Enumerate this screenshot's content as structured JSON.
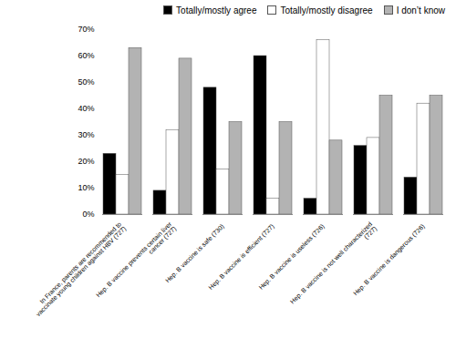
{
  "chart_data": {
    "type": "bar",
    "categories": [
      "In France, parents are recommended to\nvaccinate young children against HBV (727)",
      "Hep. B vaccine prevents certain liver\ncancer (727)",
      "Hep. B vaccine is safe (730)",
      "Hep. B vaccine is efficient (727)",
      "Hep. B vaccine is useless (726)",
      "Hep. B vaccine is not well characterized\n(727)",
      "Hep. B vaccine is dangerous (726)"
    ],
    "series": [
      {
        "name": "Totally/mostly agree",
        "color": "#000000",
        "values": [
          23,
          9,
          48,
          60,
          6,
          26,
          14
        ]
      },
      {
        "name": "Totally/mostly disagree",
        "color": "#ffffff",
        "values": [
          15,
          32,
          17,
          6,
          66,
          29,
          42
        ]
      },
      {
        "name": "I don’t know",
        "color": "#b3b3b3",
        "values": [
          63,
          59,
          35,
          35,
          28,
          45,
          45
        ]
      }
    ],
    "ylim": [
      0,
      70
    ],
    "yticks": [
      {
        "value": 0,
        "label": "0%"
      },
      {
        "value": 10,
        "label": "10%"
      },
      {
        "value": 20,
        "label": "20%"
      },
      {
        "value": 30,
        "label": "30%"
      },
      {
        "value": 40,
        "label": "40%"
      },
      {
        "value": 50,
        "label": "50%"
      },
      {
        "value": 60,
        "label": "60%"
      },
      {
        "value": 70,
        "label": "70%"
      }
    ],
    "grid": false,
    "legend": "upper right"
  }
}
